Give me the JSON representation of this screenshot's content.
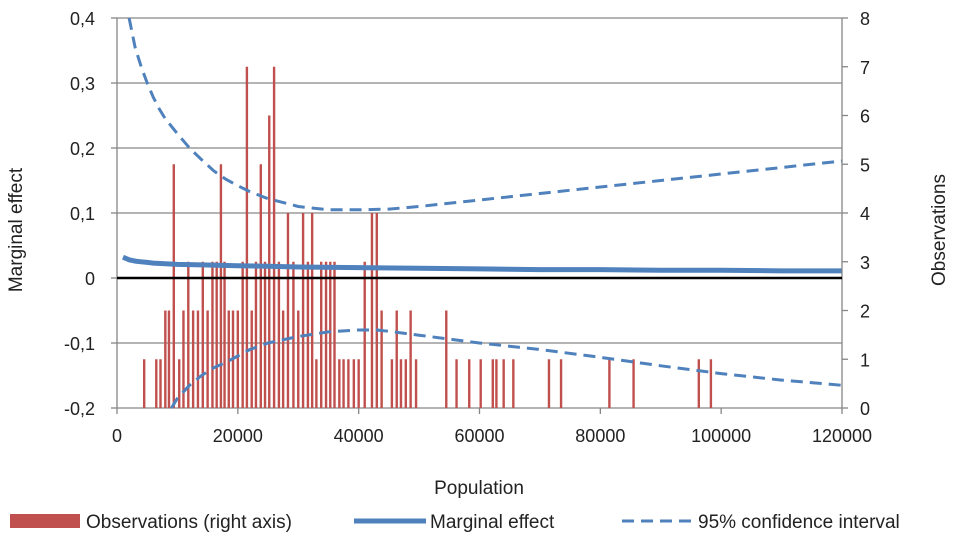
{
  "chart_data": {
    "type": "bar",
    "title": "",
    "xlabel": "Population",
    "ylabel": "Marginal effect",
    "y2label": "Observations",
    "xlim": [
      0,
      120000
    ],
    "ylim": [
      -0.2,
      0.4
    ],
    "y2lim": [
      0,
      8
    ],
    "grid": true,
    "x_ticks": [
      "0",
      "20000",
      "40000",
      "60000",
      "80000",
      "100000",
      "120000"
    ],
    "x_tick_values": [
      0,
      20000,
      40000,
      60000,
      80000,
      100000,
      120000
    ],
    "y_ticks": [
      "-0,2",
      "-0,1",
      "0",
      "0,1",
      "0,2",
      "0,3",
      "0,4"
    ],
    "y_tick_values": [
      -0.2,
      -0.1,
      0,
      0.1,
      0.2,
      0.3,
      0.4
    ],
    "y2_ticks": [
      "0",
      "1",
      "2",
      "3",
      "4",
      "5",
      "6",
      "7",
      "8"
    ],
    "y2_tick_values": [
      0,
      1,
      2,
      3,
      4,
      5,
      6,
      7,
      8
    ],
    "legend": {
      "position": "bottom",
      "items": [
        "Observations (right axis)",
        "Marginal effect",
        "95% confidence interval"
      ]
    },
    "colors": {
      "observations": "#c0504d",
      "marginal_effect": "#4f81bd",
      "confidence_interval": "#4f81bd",
      "zero_line": "#000000",
      "grid": "#868686"
    },
    "series": [
      {
        "name": "Observations (right axis)",
        "axis": "right",
        "type": "bar",
        "x": [
          4500,
          6500,
          7200,
          8000,
          8600,
          9400,
          10300,
          11000,
          11800,
          12600,
          13400,
          14200,
          15000,
          15800,
          16500,
          17200,
          17800,
          18500,
          19200,
          20000,
          20800,
          21500,
          22300,
          23000,
          23800,
          24500,
          25200,
          26000,
          26800,
          27500,
          28300,
          29200,
          30000,
          30800,
          31600,
          32300,
          33000,
          33800,
          34600,
          35300,
          36000,
          36800,
          37500,
          38300,
          39200,
          40000,
          41000,
          42200,
          43000,
          43800,
          45500,
          46300,
          47000,
          47800,
          48600,
          49500,
          54500,
          56200,
          58300,
          60200,
          62200,
          62800,
          64000,
          65600,
          71500,
          73500,
          81500,
          85500,
          96300,
          98300
        ],
        "values": [
          1,
          1,
          1,
          2,
          2,
          5,
          1,
          2,
          3,
          2,
          2,
          3,
          2,
          3,
          3,
          5,
          3,
          2,
          2,
          2,
          3,
          7,
          2,
          3,
          5,
          3,
          6,
          7,
          3,
          2,
          4,
          3,
          2,
          4,
          3,
          4,
          1,
          3,
          3,
          3,
          3,
          1,
          1,
          1,
          1,
          1,
          3,
          4,
          4,
          2,
          1,
          2,
          1,
          1,
          2,
          1,
          2,
          1,
          1,
          1,
          1,
          1,
          1,
          1,
          1,
          1,
          1,
          1,
          1,
          1
        ]
      },
      {
        "name": "Marginal effect",
        "axis": "left",
        "type": "line",
        "x": [
          1000,
          2000,
          3000,
          4000,
          5000,
          6000,
          8000,
          10000,
          15000,
          20000,
          25000,
          30000,
          40000,
          50000,
          60000,
          70000,
          80000,
          90000,
          100000,
          110000,
          120000
        ],
        "values": [
          0.032,
          0.028,
          0.026,
          0.025,
          0.024,
          0.023,
          0.022,
          0.021,
          0.02,
          0.019,
          0.018,
          0.017,
          0.016,
          0.015,
          0.014,
          0.013,
          0.013,
          0.012,
          0.012,
          0.011,
          0.011
        ]
      },
      {
        "name": "95% confidence interval",
        "axis": "left",
        "type": "line",
        "dashed": true,
        "part": "upper",
        "x": [
          2000,
          3000,
          4000,
          5000,
          6000,
          7000,
          8000,
          10000,
          12000,
          14000,
          16000,
          18000,
          20000,
          22000,
          25000,
          28000,
          30000,
          35000,
          40000,
          45000,
          50000,
          60000,
          70000,
          80000,
          90000,
          100000,
          110000,
          120000
        ],
        "values": [
          0.4,
          0.355,
          0.325,
          0.3,
          0.278,
          0.26,
          0.245,
          0.222,
          0.2,
          0.182,
          0.165,
          0.152,
          0.142,
          0.133,
          0.122,
          0.115,
          0.11,
          0.105,
          0.105,
          0.106,
          0.11,
          0.12,
          0.13,
          0.14,
          0.15,
          0.16,
          0.17,
          0.18
        ]
      },
      {
        "name": "95% confidence interval",
        "axis": "left",
        "type": "line",
        "dashed": true,
        "part": "lower",
        "x": [
          9000,
          10000,
          11000,
          12000,
          14000,
          16000,
          18000,
          20000,
          22000,
          25000,
          30000,
          35000,
          40000,
          43000,
          45000,
          50000,
          60000,
          70000,
          80000,
          90000,
          100000,
          110000,
          120000
        ],
        "values": [
          -0.2,
          -0.185,
          -0.175,
          -0.165,
          -0.15,
          -0.138,
          -0.13,
          -0.12,
          -0.11,
          -0.1,
          -0.09,
          -0.083,
          -0.08,
          -0.08,
          -0.082,
          -0.088,
          -0.1,
          -0.11,
          -0.122,
          -0.135,
          -0.147,
          -0.157,
          -0.165
        ]
      }
    ]
  }
}
